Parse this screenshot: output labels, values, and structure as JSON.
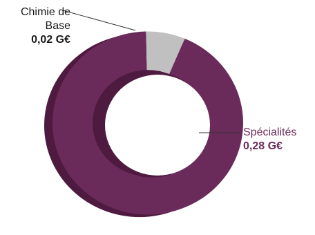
{
  "chart_data": {
    "type": "pie",
    "variant": "donut-3d",
    "slices": [
      {
        "label": "Chimie de Base",
        "value": 0.02,
        "value_label": "0,02 G€",
        "color": "#c0c0c0"
      },
      {
        "label": "Spécialités",
        "value": 0.28,
        "value_label": "0,28 G€",
        "color": "#6b2b5a"
      }
    ],
    "colors": {
      "leader_line": "#333333",
      "side_shade": "#4e1a40",
      "top_shade": "#6b2b5a"
    }
  }
}
